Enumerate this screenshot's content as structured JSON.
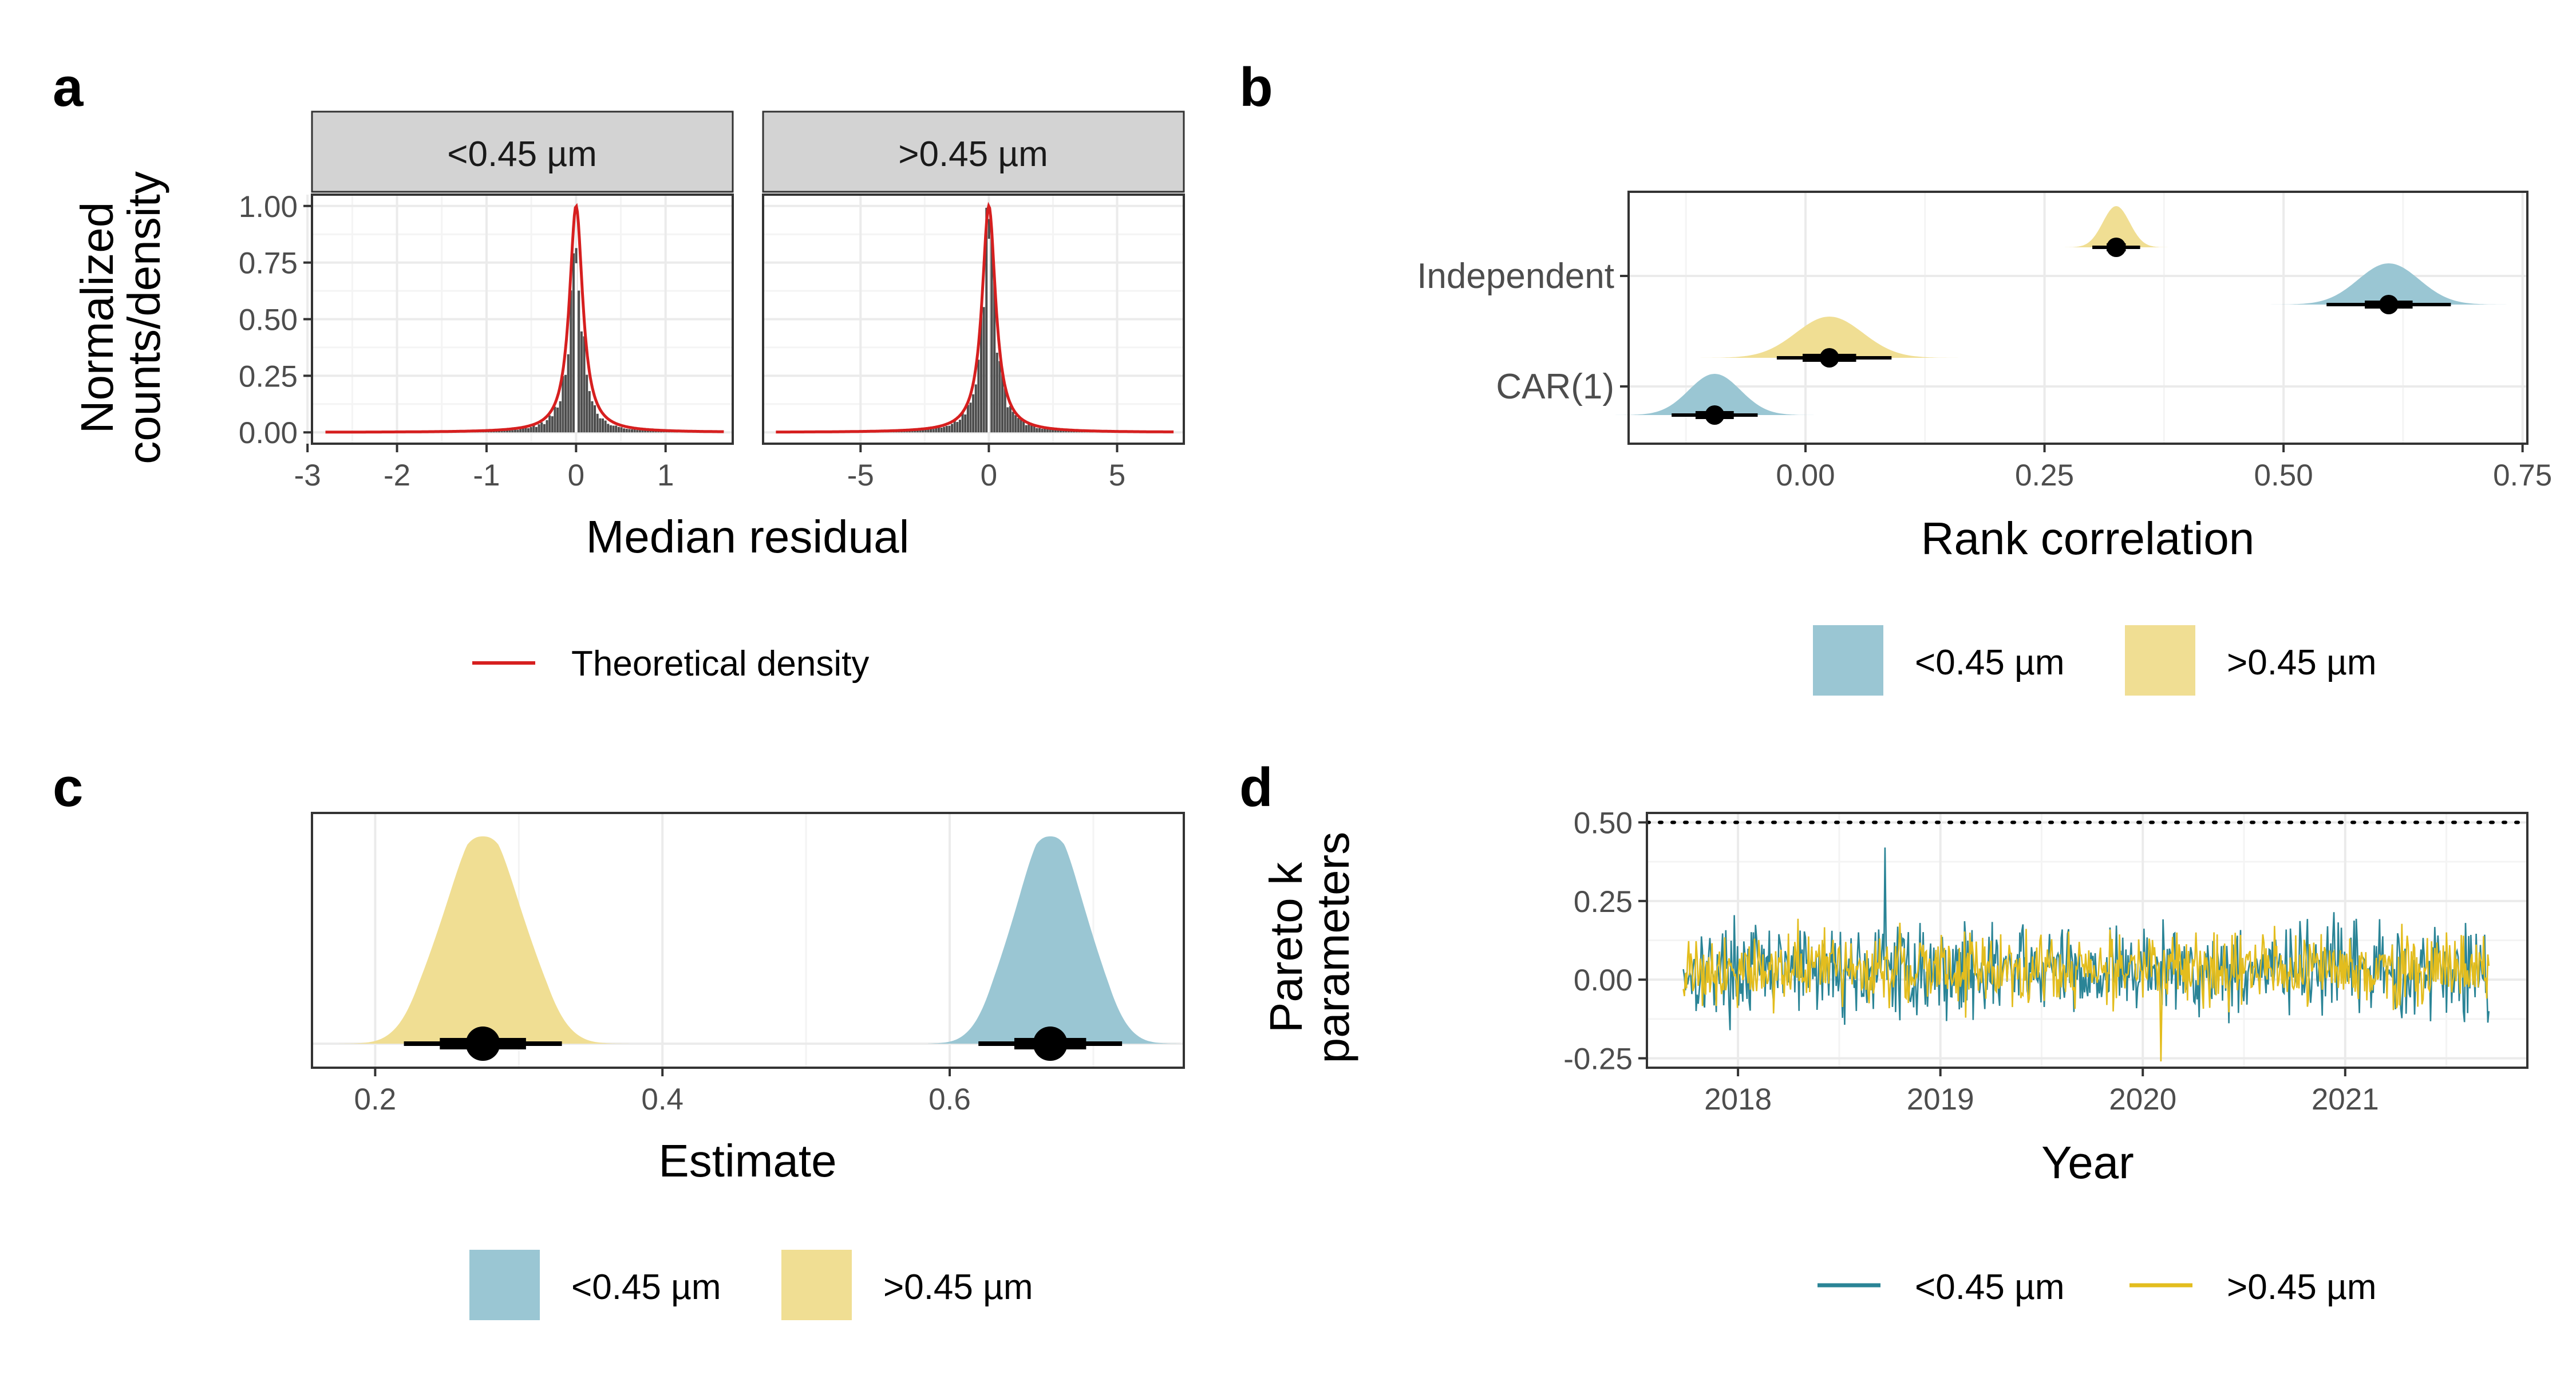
{
  "colors": {
    "small": "#9ac6d3",
    "large": "#f0de93",
    "small_line": "#2a8496",
    "large_line": "#e3bd1e",
    "theoretical": "#d61f1f",
    "hist": "#4d4d4d"
  },
  "chart_data": [
    {
      "panel": "a",
      "type": "histogram",
      "xlabel": "Median residual",
      "ylabel_lines": [
        "Normalized",
        "counts/density"
      ],
      "legend": {
        "line_label": "Theoretical density",
        "position": "bottom"
      },
      "facets": [
        {
          "label": "<0.45 µm",
          "xlim": [
            -2.95,
            1.75
          ],
          "ylim": [
            -0.05,
            1.05
          ],
          "xticks": [
            -3,
            -2,
            -1,
            0,
            1
          ],
          "xtick_labels": [
            "-3",
            "-2",
            "-1",
            "0",
            "1"
          ],
          "yticks": [
            0,
            0.25,
            0.5,
            0.75,
            1
          ],
          "ytick_labels": [
            "0.00",
            "0.25",
            "0.50",
            "0.75",
            "1.00"
          ],
          "center": 0.0,
          "scale": 0.09,
          "range": [
            -2.8,
            1.65
          ],
          "hist_peak": 0.83
        },
        {
          "label": ">0.45 µm",
          "xlim": [
            -8.8,
            7.6
          ],
          "ylim": [
            -0.05,
            1.05
          ],
          "xticks": [
            -5,
            0,
            5
          ],
          "xtick_labels": [
            "-5",
            "0",
            "5"
          ],
          "yticks": [
            0,
            0.25,
            0.5,
            0.75,
            1
          ],
          "center": 0.0,
          "scale": 0.32,
          "range": [
            -8.3,
            7.2
          ],
          "hist_peak": 0.95
        }
      ]
    },
    {
      "panel": "b",
      "type": "halfeye",
      "xlabel": "Rank correlation",
      "xlim": [
        -0.185,
        0.755
      ],
      "xticks": [
        0,
        0.25,
        0.5,
        0.75
      ],
      "xtick_labels": [
        "0.00",
        "0.25",
        "0.50",
        "0.75"
      ],
      "categories": [
        "Independent",
        "CAR(1)"
      ],
      "legend": {
        "entries": [
          "<0.45 µm",
          ">0.45 µm"
        ],
        "position": "bottom"
      },
      "series": [
        {
          "name": "<0.45 µm",
          "category": "Independent",
          "median": 0.61,
          "sd": 0.032,
          "ci66": [
            0.585,
            0.635
          ],
          "ci95": [
            0.545,
            0.675
          ],
          "row": 1
        },
        {
          "name": ">0.45 µm",
          "category": "Independent",
          "median": 0.325,
          "sd": 0.014,
          "ci66": [
            0.315,
            0.335
          ],
          "ci95": [
            0.3,
            0.35
          ],
          "row": 0
        },
        {
          "name": "<0.45 µm",
          "category": "CAR(1)",
          "median": -0.095,
          "sd": 0.027,
          "ci66": [
            -0.115,
            -0.075
          ],
          "ci95": [
            -0.14,
            -0.05
          ],
          "row": 1
        },
        {
          "name": ">0.45 µm",
          "category": "CAR(1)",
          "median": 0.025,
          "sd": 0.035,
          "ci66": [
            -0.003,
            0.053
          ],
          "ci95": [
            -0.03,
            0.09
          ],
          "row": 0
        }
      ]
    },
    {
      "panel": "c",
      "type": "halfeye",
      "xlabel": "Estimate",
      "xlim": [
        0.156,
        0.763
      ],
      "xticks": [
        0.2,
        0.4,
        0.6
      ],
      "xtick_labels": [
        "0.2",
        "0.4",
        "0.6"
      ],
      "legend": {
        "entries": [
          "<0.45 µm",
          ">0.45 µm"
        ],
        "position": "bottom"
      },
      "series": [
        {
          "name": ">0.45 µm",
          "median": 0.275,
          "ci66": [
            0.245,
            0.305
          ],
          "ci95": [
            0.22,
            0.33
          ],
          "density_range": [
            0.175,
            0.39
          ]
        },
        {
          "name": "<0.45 µm",
          "median": 0.67,
          "ci66": [
            0.645,
            0.695
          ],
          "ci95": [
            0.62,
            0.72
          ],
          "density_range": [
            0.585,
            0.76
          ]
        }
      ]
    },
    {
      "panel": "d",
      "type": "line",
      "xlabel": "Year",
      "ylabel_lines": [
        "Pareto k",
        "parameters"
      ],
      "xlim": [
        2017.55,
        2021.9
      ],
      "ylim": [
        -0.28,
        0.53
      ],
      "xticks": [
        2018,
        2019,
        2020,
        2021
      ],
      "xtick_labels": [
        "2018",
        "2019",
        "2020",
        "2021"
      ],
      "yticks": [
        -0.25,
        0,
        0.25,
        0.5
      ],
      "ytick_labels": [
        "-0.25",
        "0.00",
        "0.25",
        "0.50"
      ],
      "hline": 0.5,
      "x_range": [
        2017.73,
        2021.71
      ],
      "legend": {
        "entries": [
          "<0.45 µm",
          ">0.45 µm"
        ],
        "position": "bottom"
      },
      "series": [
        {
          "name": "<0.45 µm",
          "mean": 0.03,
          "spread": 0.11,
          "min": -0.24,
          "max": 0.42,
          "seed": 17
        },
        {
          "name": ">0.45 µm",
          "mean": 0.035,
          "spread": 0.09,
          "min": -0.26,
          "max": 0.29,
          "seed": 91
        }
      ]
    }
  ]
}
